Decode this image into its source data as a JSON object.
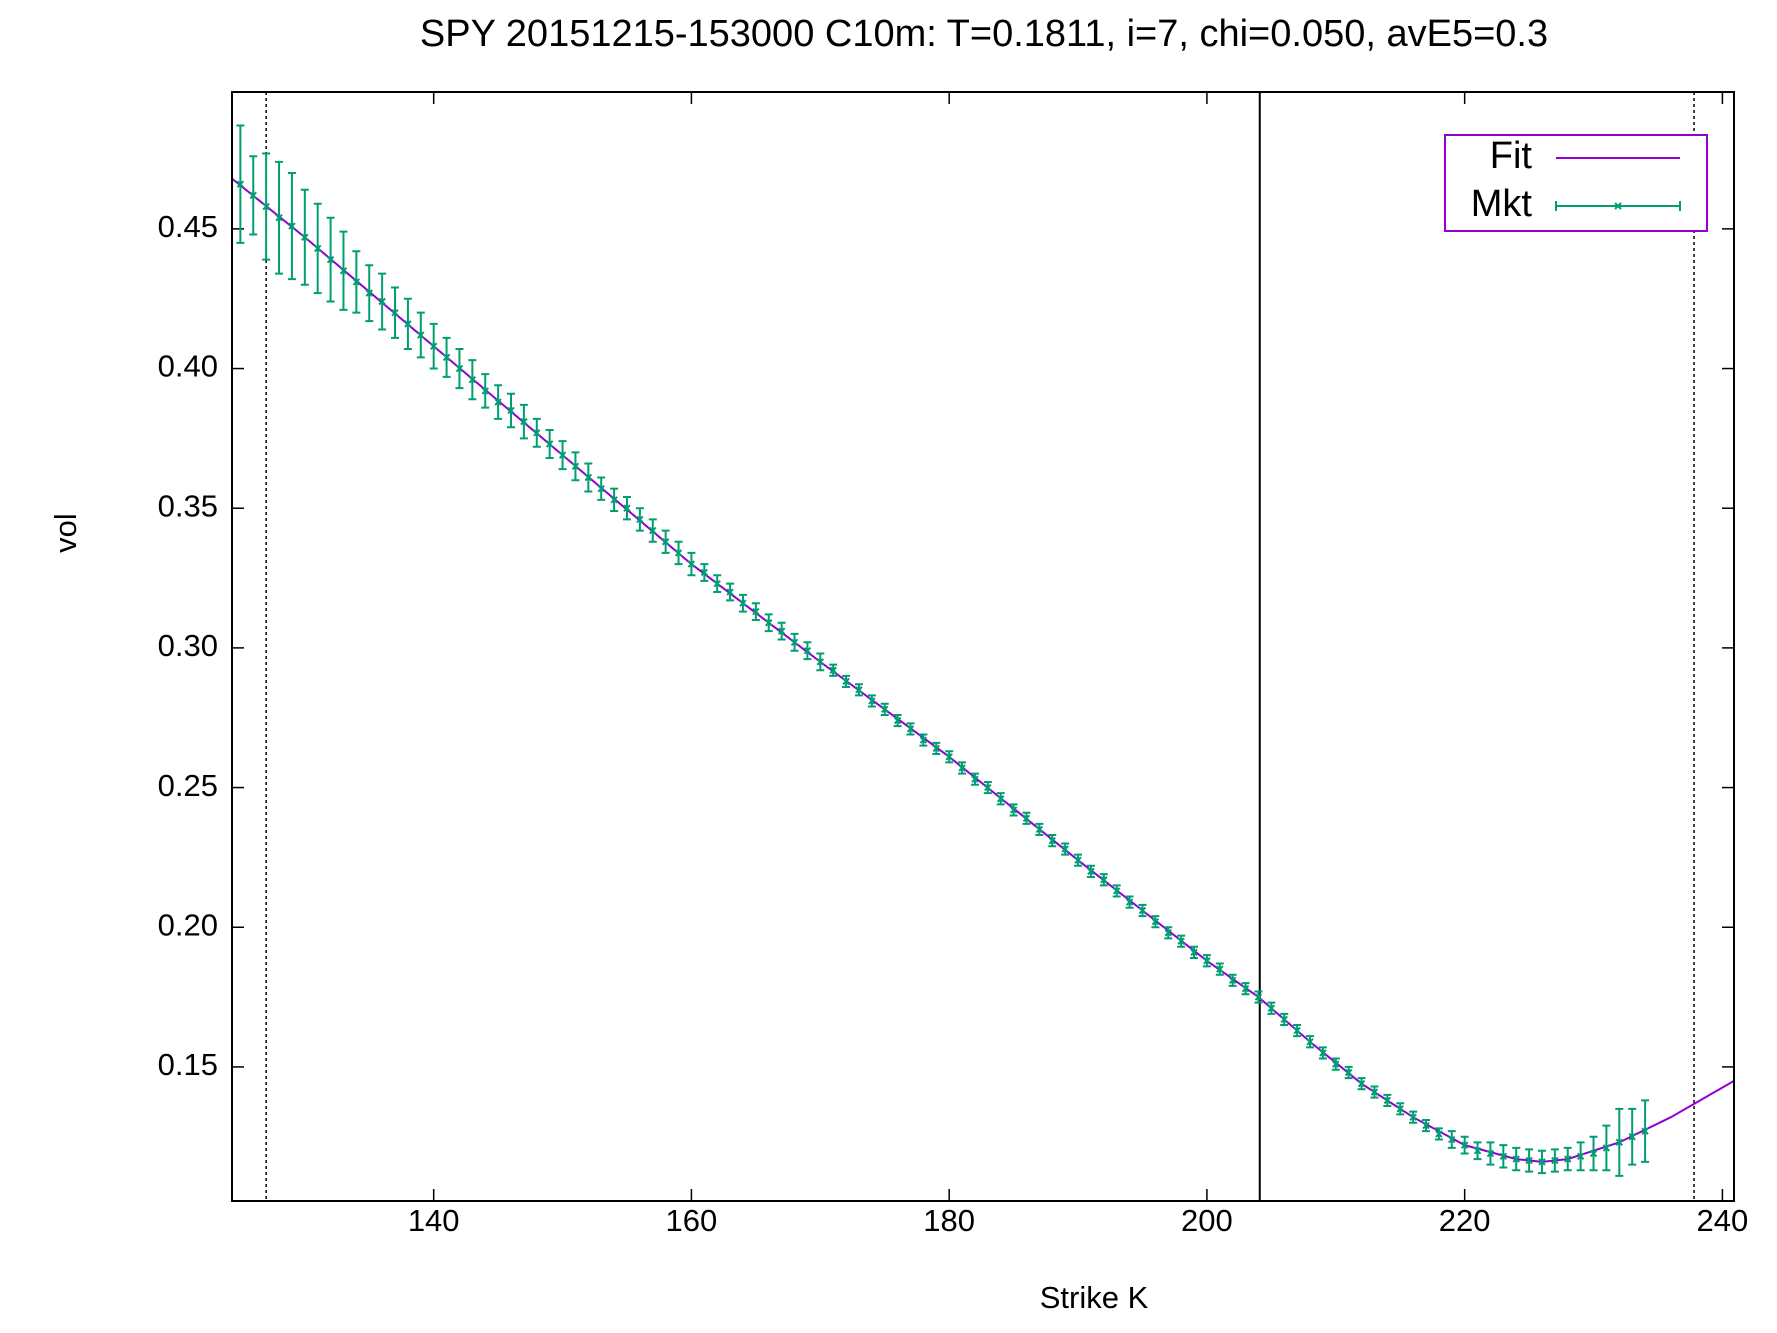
{
  "chart_data": {
    "type": "line",
    "title": "SPY 20151215-153000  C10m:  T=0.1811, i=7, chi=0.050, avE5=0.3",
    "x_label": "Strike K",
    "y_label": "vol",
    "xlim": [
      124.35,
      240.9
    ],
    "ylim": [
      0.102,
      0.499
    ],
    "xticks": [
      140,
      160,
      180,
      200,
      220,
      240
    ],
    "yticks": [
      0.15,
      {
        "value": 0.2,
        "label": "0.20"
      },
      0.25,
      {
        "value": 0.3,
        "label": "0.30"
      },
      0.35,
      {
        "value": 0.4,
        "label": "0.40"
      },
      0.45
    ],
    "legend": "top-right",
    "vlines": [
      {
        "x": 127.0,
        "style": "dotted"
      },
      {
        "x": 204.1,
        "style": "solid"
      },
      {
        "x": 237.8,
        "style": "dotted"
      }
    ],
    "series": [
      {
        "name": "Fit",
        "color": "#9400d3",
        "x": [
          124.35,
          130,
          140,
          150,
          160,
          170,
          180,
          190,
          200,
          204,
          208,
          212,
          216,
          220,
          224,
          226,
          228,
          232,
          236,
          240.9
        ],
        "values": [
          0.468,
          0.447,
          0.408,
          0.369,
          0.33,
          0.295,
          0.261,
          0.224,
          0.188,
          0.175,
          0.159,
          0.144,
          0.132,
          0.122,
          0.117,
          0.116,
          0.117,
          0.123,
          0.132,
          0.145
        ]
      },
      {
        "name": "Mkt",
        "color": "#009e73",
        "x": [
          125,
          126,
          127,
          128,
          129,
          130,
          131,
          132,
          133,
          134,
          135,
          136,
          137,
          138,
          139,
          140,
          141,
          142,
          143,
          144,
          145,
          146,
          147,
          148,
          149,
          150,
          151,
          152,
          153,
          154,
          155,
          156,
          157,
          158,
          159,
          160,
          161,
          162,
          163,
          164,
          165,
          166,
          167,
          168,
          169,
          170,
          171,
          172,
          173,
          174,
          175,
          176,
          177,
          178,
          179,
          180,
          181,
          182,
          183,
          184,
          185,
          186,
          187,
          188,
          189,
          190,
          191,
          192,
          193,
          194,
          195,
          196,
          197,
          198,
          199,
          200,
          201,
          202,
          203,
          204,
          205,
          206,
          207,
          208,
          209,
          210,
          211,
          212,
          213,
          214,
          215,
          216,
          217,
          218,
          219,
          220,
          221,
          222,
          223,
          224,
          225,
          226,
          227,
          228,
          229,
          230,
          231,
          232,
          233,
          234
        ],
        "values": [
          0.466,
          0.462,
          0.458,
          0.454,
          0.451,
          0.447,
          0.443,
          0.439,
          0.435,
          0.431,
          0.427,
          0.424,
          0.42,
          0.416,
          0.412,
          0.408,
          0.404,
          0.4,
          0.396,
          0.392,
          0.388,
          0.385,
          0.381,
          0.377,
          0.373,
          0.369,
          0.365,
          0.361,
          0.357,
          0.353,
          0.35,
          0.346,
          0.342,
          0.338,
          0.334,
          0.33,
          0.327,
          0.323,
          0.32,
          0.316,
          0.313,
          0.309,
          0.306,
          0.302,
          0.299,
          0.295,
          0.292,
          0.288,
          0.285,
          0.281,
          0.278,
          0.274,
          0.271,
          0.267,
          0.264,
          0.261,
          0.257,
          0.253,
          0.25,
          0.246,
          0.242,
          0.239,
          0.235,
          0.231,
          0.228,
          0.224,
          0.22,
          0.217,
          0.213,
          0.209,
          0.206,
          0.202,
          0.198,
          0.195,
          0.191,
          0.188,
          0.185,
          0.181,
          0.178,
          0.175,
          0.171,
          0.167,
          0.163,
          0.159,
          0.155,
          0.151,
          0.148,
          0.144,
          0.141,
          0.138,
          0.135,
          0.132,
          0.129,
          0.126,
          0.124,
          0.122,
          0.12,
          0.119,
          0.118,
          0.117,
          0.1165,
          0.116,
          0.1165,
          0.117,
          0.118,
          0.119,
          0.121,
          0.123,
          0.125,
          0.127
        ],
        "errors": [
          0.021,
          0.014,
          0.019,
          0.02,
          0.019,
          0.017,
          0.016,
          0.015,
          0.014,
          0.011,
          0.01,
          0.01,
          0.009,
          0.009,
          0.008,
          0.008,
          0.007,
          0.007,
          0.007,
          0.006,
          0.006,
          0.006,
          0.006,
          0.005,
          0.005,
          0.005,
          0.005,
          0.005,
          0.004,
          0.004,
          0.004,
          0.004,
          0.004,
          0.004,
          0.004,
          0.004,
          0.003,
          0.003,
          0.003,
          0.003,
          0.003,
          0.003,
          0.003,
          0.003,
          0.003,
          0.003,
          0.002,
          0.002,
          0.002,
          0.002,
          0.002,
          0.002,
          0.002,
          0.002,
          0.002,
          0.002,
          0.002,
          0.002,
          0.002,
          0.002,
          0.002,
          0.002,
          0.002,
          0.002,
          0.002,
          0.002,
          0.002,
          0.002,
          0.002,
          0.002,
          0.002,
          0.002,
          0.002,
          0.002,
          0.002,
          0.002,
          0.002,
          0.002,
          0.002,
          0.002,
          0.002,
          0.002,
          0.002,
          0.002,
          0.002,
          0.002,
          0.002,
          0.002,
          0.002,
          0.002,
          0.002,
          0.002,
          0.002,
          0.002,
          0.003,
          0.003,
          0.003,
          0.004,
          0.004,
          0.004,
          0.004,
          0.004,
          0.004,
          0.004,
          0.005,
          0.006,
          0.008,
          0.012,
          0.01,
          0.011
        ]
      }
    ]
  }
}
